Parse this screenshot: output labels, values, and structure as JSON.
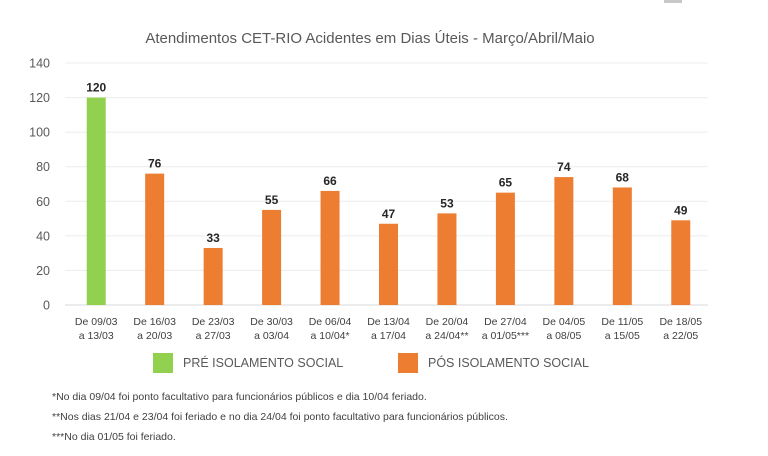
{
  "chart_data": {
    "type": "bar",
    "title": "Atendimentos CET-RIO Acidentes em Dias Úteis - Março/Abril/Maio",
    "xlabel": "",
    "ylabel": "",
    "ylim": [
      0,
      140
    ],
    "yticks": [
      0,
      20,
      40,
      60,
      80,
      100,
      120,
      140
    ],
    "grid": true,
    "categories": [
      [
        "De 09/03",
        "a 13/03"
      ],
      [
        "De 16/03",
        "a 20/03"
      ],
      [
        "De 23/03",
        "a 27/03"
      ],
      [
        "De 30/03",
        "a 03/04"
      ],
      [
        "De 06/04",
        "a 10/04*"
      ],
      [
        "De 13/04",
        "a 17/04"
      ],
      [
        "De 20/04",
        "a 24/04**"
      ],
      [
        "De 27/04",
        "a 01/05***"
      ],
      [
        "De 04/05",
        "a 08/05"
      ],
      [
        "De 11/05",
        "a 15/05"
      ],
      [
        "De 18/05",
        "a 22/05"
      ]
    ],
    "values": [
      120,
      76,
      33,
      55,
      66,
      47,
      53,
      65,
      74,
      68,
      49
    ],
    "groups": [
      "pre",
      "pos",
      "pos",
      "pos",
      "pos",
      "pos",
      "pos",
      "pos",
      "pos",
      "pos",
      "pos"
    ],
    "legend": [
      {
        "key": "pre",
        "label": "PRÉ ISOLAMENTO SOCIAL",
        "color": "#92d050"
      },
      {
        "key": "pos",
        "label": "PÓS ISOLAMENTO SOCIAL",
        "color": "#ed7d31"
      }
    ],
    "legend_position": "bottom"
  },
  "notes": [
    "*No dia 09/04 foi ponto facultativo para funcionários públicos e dia 10/04 feriado.",
    "**Nos dias 21/04 e 23/04 foi feriado e no dia 24/04 foi ponto facultativo para funcionários públicos.",
    "***No dia 01/05 foi feriado."
  ]
}
